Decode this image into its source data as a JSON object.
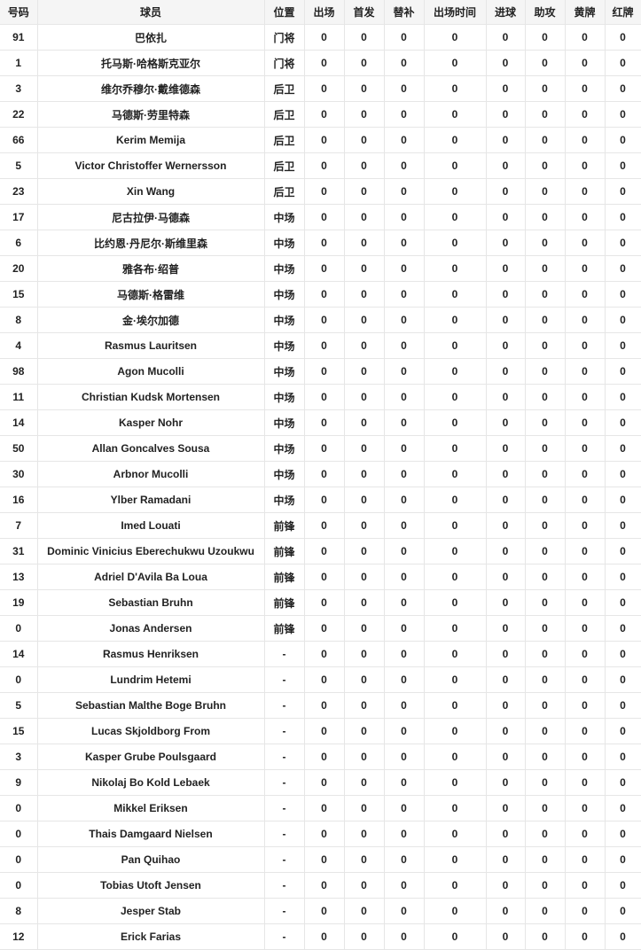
{
  "table": {
    "headers": [
      "号码",
      "球员",
      "位置",
      "出场",
      "首发",
      "替补",
      "出场时间",
      "进球",
      "助攻",
      "黄牌",
      "红牌"
    ],
    "rows": [
      [
        "91",
        "巴依扎",
        "门将",
        "0",
        "0",
        "0",
        "0",
        "0",
        "0",
        "0",
        "0"
      ],
      [
        "1",
        "托马斯·哈格斯克亚尔",
        "门将",
        "0",
        "0",
        "0",
        "0",
        "0",
        "0",
        "0",
        "0"
      ],
      [
        "3",
        "维尔乔穆尔·戴维德森",
        "后卫",
        "0",
        "0",
        "0",
        "0",
        "0",
        "0",
        "0",
        "0"
      ],
      [
        "22",
        "马德斯·劳里特森",
        "后卫",
        "0",
        "0",
        "0",
        "0",
        "0",
        "0",
        "0",
        "0"
      ],
      [
        "66",
        "Kerim Memija",
        "后卫",
        "0",
        "0",
        "0",
        "0",
        "0",
        "0",
        "0",
        "0"
      ],
      [
        "5",
        "Victor Christoffer Wernersson",
        "后卫",
        "0",
        "0",
        "0",
        "0",
        "0",
        "0",
        "0",
        "0"
      ],
      [
        "23",
        "Xin Wang",
        "后卫",
        "0",
        "0",
        "0",
        "0",
        "0",
        "0",
        "0",
        "0"
      ],
      [
        "17",
        "尼古拉伊·马德森",
        "中场",
        "0",
        "0",
        "0",
        "0",
        "0",
        "0",
        "0",
        "0"
      ],
      [
        "6",
        "比约恩·丹尼尔·斯维里森",
        "中场",
        "0",
        "0",
        "0",
        "0",
        "0",
        "0",
        "0",
        "0"
      ],
      [
        "20",
        "雅各布·绍普",
        "中场",
        "0",
        "0",
        "0",
        "0",
        "0",
        "0",
        "0",
        "0"
      ],
      [
        "15",
        "马德斯·格雷维",
        "中场",
        "0",
        "0",
        "0",
        "0",
        "0",
        "0",
        "0",
        "0"
      ],
      [
        "8",
        "金·埃尔加德",
        "中场",
        "0",
        "0",
        "0",
        "0",
        "0",
        "0",
        "0",
        "0"
      ],
      [
        "4",
        "Rasmus Lauritsen",
        "中场",
        "0",
        "0",
        "0",
        "0",
        "0",
        "0",
        "0",
        "0"
      ],
      [
        "98",
        "Agon Mucolli",
        "中场",
        "0",
        "0",
        "0",
        "0",
        "0",
        "0",
        "0",
        "0"
      ],
      [
        "11",
        "Christian Kudsk Mortensen",
        "中场",
        "0",
        "0",
        "0",
        "0",
        "0",
        "0",
        "0",
        "0"
      ],
      [
        "14",
        "Kasper Nohr",
        "中场",
        "0",
        "0",
        "0",
        "0",
        "0",
        "0",
        "0",
        "0"
      ],
      [
        "50",
        "Allan Goncalves Sousa",
        "中场",
        "0",
        "0",
        "0",
        "0",
        "0",
        "0",
        "0",
        "0"
      ],
      [
        "30",
        "Arbnor Mucolli",
        "中场",
        "0",
        "0",
        "0",
        "0",
        "0",
        "0",
        "0",
        "0"
      ],
      [
        "16",
        "Ylber Ramadani",
        "中场",
        "0",
        "0",
        "0",
        "0",
        "0",
        "0",
        "0",
        "0"
      ],
      [
        "7",
        "Imed Louati",
        "前锋",
        "0",
        "0",
        "0",
        "0",
        "0",
        "0",
        "0",
        "0"
      ],
      [
        "31",
        "Dominic Vinicius Eberechukwu Uzoukwu",
        "前锋",
        "0",
        "0",
        "0",
        "0",
        "0",
        "0",
        "0",
        "0"
      ],
      [
        "13",
        "Adriel D'Avila Ba Loua",
        "前锋",
        "0",
        "0",
        "0",
        "0",
        "0",
        "0",
        "0",
        "0"
      ],
      [
        "19",
        "Sebastian Bruhn",
        "前锋",
        "0",
        "0",
        "0",
        "0",
        "0",
        "0",
        "0",
        "0"
      ],
      [
        "0",
        "Jonas Andersen",
        "前锋",
        "0",
        "0",
        "0",
        "0",
        "0",
        "0",
        "0",
        "0"
      ],
      [
        "14",
        "Rasmus Henriksen",
        "-",
        "0",
        "0",
        "0",
        "0",
        "0",
        "0",
        "0",
        "0"
      ],
      [
        "0",
        "Lundrim Hetemi",
        "-",
        "0",
        "0",
        "0",
        "0",
        "0",
        "0",
        "0",
        "0"
      ],
      [
        "5",
        "Sebastian Malthe Boge Bruhn",
        "-",
        "0",
        "0",
        "0",
        "0",
        "0",
        "0",
        "0",
        "0"
      ],
      [
        "15",
        "Lucas Skjoldborg From",
        "-",
        "0",
        "0",
        "0",
        "0",
        "0",
        "0",
        "0",
        "0"
      ],
      [
        "3",
        "Kasper Grube Poulsgaard",
        "-",
        "0",
        "0",
        "0",
        "0",
        "0",
        "0",
        "0",
        "0"
      ],
      [
        "9",
        "Nikolaj Bo Kold Lebaek",
        "-",
        "0",
        "0",
        "0",
        "0",
        "0",
        "0",
        "0",
        "0"
      ],
      [
        "0",
        "Mikkel Eriksen",
        "-",
        "0",
        "0",
        "0",
        "0",
        "0",
        "0",
        "0",
        "0"
      ],
      [
        "0",
        "Thais Damgaard Nielsen",
        "-",
        "0",
        "0",
        "0",
        "0",
        "0",
        "0",
        "0",
        "0"
      ],
      [
        "0",
        "Pan Quihao",
        "-",
        "0",
        "0",
        "0",
        "0",
        "0",
        "0",
        "0",
        "0"
      ],
      [
        "0",
        "Tobias Utoft Jensen",
        "-",
        "0",
        "0",
        "0",
        "0",
        "0",
        "0",
        "0",
        "0"
      ],
      [
        "8",
        "Jesper Stab",
        "-",
        "0",
        "0",
        "0",
        "0",
        "0",
        "0",
        "0",
        "0"
      ],
      [
        "12",
        "Erick Farias",
        "-",
        "0",
        "0",
        "0",
        "0",
        "0",
        "0",
        "0",
        "0"
      ]
    ]
  }
}
